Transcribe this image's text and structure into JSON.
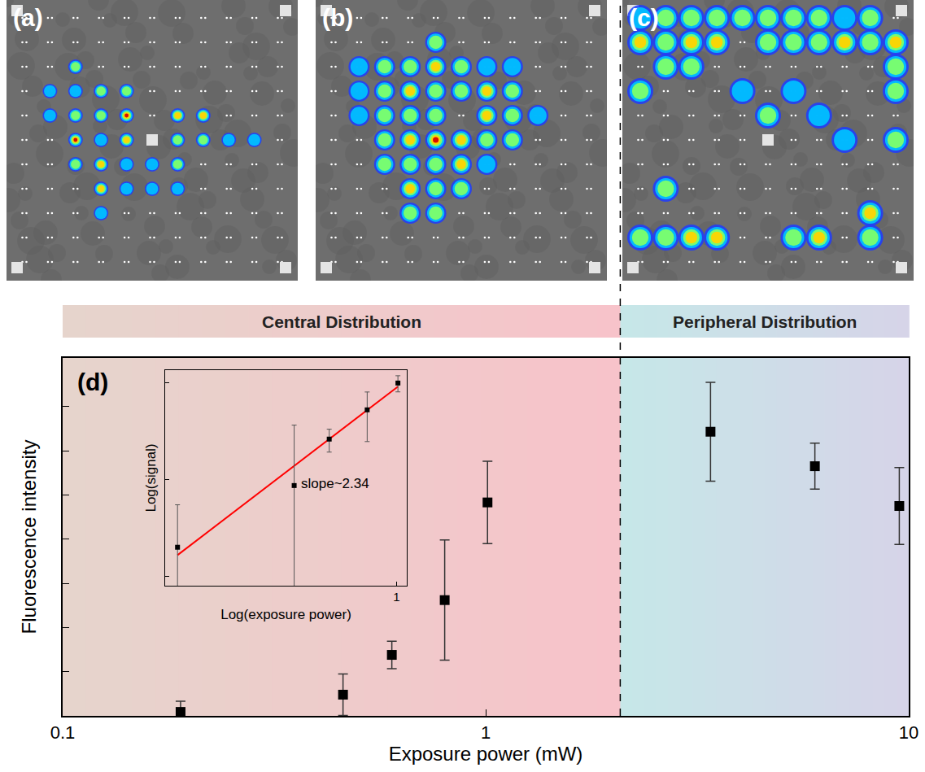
{
  "panels": [
    {
      "label": "(a)",
      "spots": [
        [
          2,
          2,
          0.5
        ],
        [
          1,
          3,
          0.4
        ],
        [
          2,
          3,
          0.3
        ],
        [
          3,
          3,
          0.6
        ],
        [
          4,
          3,
          0.5
        ],
        [
          1,
          4,
          0.4
        ],
        [
          2,
          4,
          0.5
        ],
        [
          3,
          4,
          0.5
        ],
        [
          4,
          4,
          0.9
        ],
        [
          6,
          4,
          0.8
        ],
        [
          7,
          4,
          0.7
        ],
        [
          2,
          5,
          0.9
        ],
        [
          3,
          5,
          0.4
        ],
        [
          4,
          5,
          0.7
        ],
        [
          6,
          5,
          0.6
        ],
        [
          7,
          5,
          0.5
        ],
        [
          8,
          5,
          0.4
        ],
        [
          9,
          5,
          0.3
        ],
        [
          2,
          6,
          0.5
        ],
        [
          3,
          6,
          0.7
        ],
        [
          4,
          6,
          0.4
        ],
        [
          5,
          6,
          0.4
        ],
        [
          6,
          6,
          0.5
        ],
        [
          3,
          7,
          0.8
        ],
        [
          4,
          7,
          0.4
        ],
        [
          5,
          7,
          0.3
        ],
        [
          6,
          7,
          0.3
        ],
        [
          3,
          8,
          0.4
        ]
      ]
    },
    {
      "label": "(b)",
      "spots": [
        [
          4,
          1,
          0.5
        ],
        [
          1,
          2,
          0.3
        ],
        [
          2,
          2,
          0.5
        ],
        [
          3,
          2,
          0.6
        ],
        [
          4,
          2,
          0.7
        ],
        [
          5,
          2,
          0.5
        ],
        [
          6,
          2,
          0.4
        ],
        [
          7,
          2,
          0.3
        ],
        [
          1,
          3,
          0.4
        ],
        [
          2,
          3,
          0.6
        ],
        [
          3,
          3,
          0.7
        ],
        [
          4,
          3,
          0.5
        ],
        [
          5,
          3,
          0.6
        ],
        [
          6,
          3,
          0.8
        ],
        [
          7,
          3,
          0.5
        ],
        [
          1,
          4,
          0.3
        ],
        [
          2,
          4,
          0.6
        ],
        [
          3,
          4,
          0.5
        ],
        [
          4,
          4,
          0.6
        ],
        [
          6,
          4,
          0.7
        ],
        [
          7,
          4,
          0.6
        ],
        [
          8,
          4,
          0.4
        ],
        [
          2,
          5,
          0.6
        ],
        [
          3,
          5,
          0.7
        ],
        [
          4,
          5,
          0.9
        ],
        [
          5,
          5,
          0.7
        ],
        [
          6,
          5,
          0.6
        ],
        [
          7,
          5,
          0.5
        ],
        [
          2,
          6,
          0.5
        ],
        [
          3,
          6,
          0.6
        ],
        [
          4,
          6,
          0.5
        ],
        [
          5,
          6,
          0.7
        ],
        [
          6,
          6,
          0.4
        ],
        [
          3,
          7,
          0.8
        ],
        [
          4,
          7,
          0.6
        ],
        [
          5,
          7,
          0.5
        ],
        [
          3,
          8,
          0.6
        ],
        [
          4,
          8,
          0.5
        ]
      ]
    },
    {
      "label": "(c)",
      "spots": [
        [
          0,
          0,
          0.4
        ],
        [
          1,
          0,
          0.5
        ],
        [
          2,
          0,
          0.5
        ],
        [
          3,
          0,
          0.6
        ],
        [
          4,
          0,
          0.5
        ],
        [
          5,
          0,
          0.6
        ],
        [
          6,
          0,
          0.5
        ],
        [
          7,
          0,
          0.5
        ],
        [
          8,
          0,
          0.4
        ],
        [
          9,
          0,
          0.6
        ],
        [
          0,
          1,
          0.7
        ],
        [
          1,
          1,
          0.6
        ],
        [
          2,
          1,
          0.8
        ],
        [
          3,
          1,
          0.7
        ],
        [
          5,
          1,
          0.5
        ],
        [
          6,
          1,
          0.5
        ],
        [
          7,
          1,
          0.6
        ],
        [
          8,
          1,
          0.8
        ],
        [
          9,
          1,
          0.5
        ],
        [
          10,
          1,
          0.7
        ],
        [
          1,
          2,
          0.6
        ],
        [
          2,
          2,
          0.5
        ],
        [
          10,
          2,
          0.5
        ],
        [
          0,
          3,
          0.5
        ],
        [
          4,
          3,
          0.4
        ],
        [
          6,
          3,
          0.4
        ],
        [
          10,
          3,
          0.5
        ],
        [
          5,
          4,
          0.6
        ],
        [
          7,
          4,
          0.4
        ],
        [
          10,
          5,
          0.6
        ],
        [
          8,
          5,
          0.4
        ],
        [
          1,
          7,
          0.5
        ],
        [
          9,
          8,
          0.7
        ],
        [
          0,
          9,
          0.6
        ],
        [
          1,
          9,
          0.6
        ],
        [
          2,
          9,
          0.7
        ],
        [
          3,
          9,
          0.7
        ],
        [
          6,
          9,
          0.6
        ],
        [
          7,
          9,
          0.7
        ],
        [
          9,
          9,
          0.5
        ]
      ]
    }
  ],
  "chart_data": [
    {
      "type": "scatter",
      "panel_label": "(d)",
      "x_label": "Exposure power (mW)",
      "y_label": "Fluorescence intensity",
      "x": [
        0.19,
        0.46,
        0.6,
        0.8,
        1.01,
        3.4,
        6,
        9.5
      ],
      "values": [
        0.09,
        0.48,
        1.38,
        2.62,
        4.83,
        6.43,
        5.65,
        4.75
      ],
      "errors": [
        0.24,
        0.47,
        0.31,
        1.36,
        0.93,
        1.12,
        0.52,
        0.87
      ],
      "xlim": [
        0.1,
        10
      ],
      "ylim": [
        0,
        8.1
      ],
      "xticks": [
        0.1,
        1,
        10
      ],
      "yticks": [
        1,
        2,
        3,
        4,
        5,
        6,
        7
      ],
      "log": "x",
      "tick_labels": "x",
      "grid": false,
      "marker": "square",
      "color": "#000000",
      "regions": [
        {
          "label": "Central Distribution",
          "from": 0.1,
          "to": 2.08
        },
        {
          "label": "Peripheral Distribution",
          "from": 2.08,
          "to": 10
        }
      ]
    },
    {
      "type": "scatter",
      "x_label": "Log(exposure power)",
      "y_label": "Log(signal)",
      "x": [
        0.19,
        0.46,
        0.6,
        0.8,
        1.01
      ],
      "values": [
        0.02,
        0.087,
        0.263,
        0.528,
        1.0
      ],
      "errors": [
        0.035,
        0.28,
        0.07,
        0.28,
        0.19
      ],
      "xlim": [
        0.173,
        1.08
      ],
      "ylim": [
        0.008,
        1.36
      ],
      "xticks": [
        1
      ],
      "yticks": [
        0.01,
        0.1,
        1
      ],
      "log": true,
      "tick_labels": "x",
      "grid": false,
      "marker": "square",
      "color": "#000000",
      "fit": {
        "x": [
          0.19,
          1.01
        ],
        "y": [
          0.0166,
          0.92
        ],
        "color": "#ff0000",
        "label": "slope~2.34"
      }
    }
  ]
}
